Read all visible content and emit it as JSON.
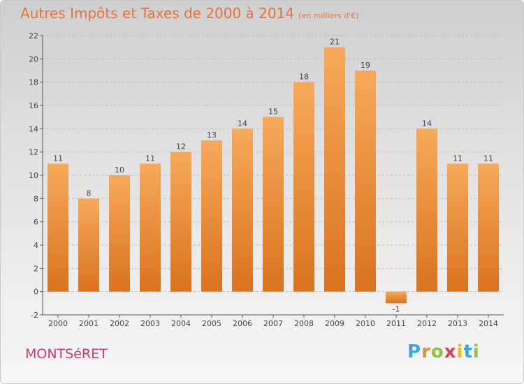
{
  "header": {
    "title": "Autres Impôts et Taxes de 2000 à 2014",
    "unit": "(en milliers d'€)"
  },
  "footer": {
    "commune": "MONTSéRET",
    "logo_letters": [
      "P",
      "r",
      "o",
      "x",
      "i",
      "t",
      "i"
    ],
    "logo_colors": [
      "#3aa7d8",
      "#f08a2e",
      "#8bc53f",
      "#e23b5a",
      "#f2b713",
      "#3aa7d8",
      "#8bc53f"
    ]
  },
  "colors": {
    "bar_top": "#f7a95a",
    "bar_bottom": "#d9731f",
    "grid": "#bdbdbd",
    "title": "#e8733a"
  },
  "chart_data": {
    "type": "bar",
    "categories": [
      "2000",
      "2001",
      "2002",
      "2003",
      "2004",
      "2005",
      "2006",
      "2007",
      "2008",
      "2009",
      "2010",
      "2011",
      "2012",
      "2013",
      "2014"
    ],
    "values": [
      11,
      8,
      10,
      11,
      12,
      13,
      14,
      15,
      18,
      21,
      19,
      -1,
      14,
      11,
      11
    ],
    "title": "Autres Impôts et Taxes de 2000 à 2014",
    "ylim": [
      -2,
      22
    ],
    "yticks": [
      -2,
      0,
      2,
      4,
      6,
      8,
      10,
      12,
      14,
      16,
      18,
      20,
      22
    ],
    "grid": true
  }
}
